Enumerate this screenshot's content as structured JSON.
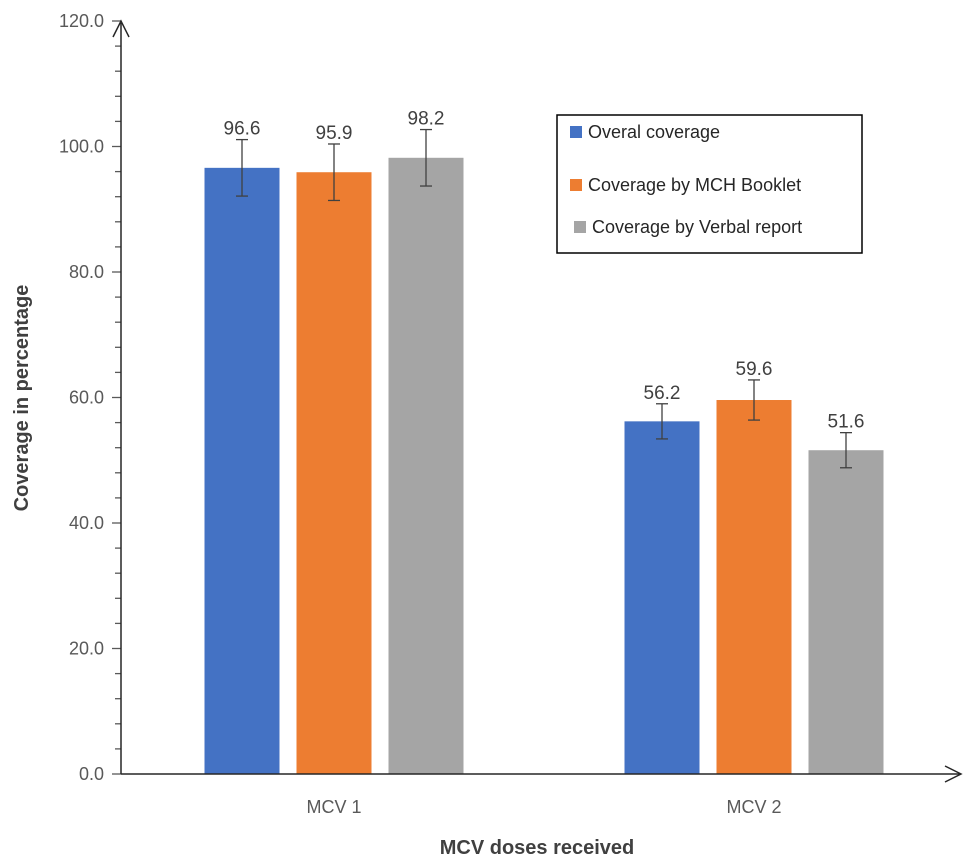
{
  "chart_data": {
    "type": "bar",
    "categories": [
      "MCV 1",
      "MCV 2"
    ],
    "series": [
      {
        "name": "Overal coverage",
        "values": [
          96.6,
          56.2
        ],
        "error": [
          4.5,
          2.8
        ],
        "color": "#4472C4"
      },
      {
        "name": "Coverage by MCH Booklet",
        "values": [
          95.9,
          59.6
        ],
        "error": [
          4.5,
          3.2
        ],
        "color": "#ED7D31"
      },
      {
        "name": "Coverage by Verbal report",
        "values": [
          98.2,
          51.6
        ],
        "error": [
          4.5,
          2.8
        ],
        "color": "#A5A5A5"
      }
    ],
    "data_labels": [
      [
        "96.6",
        "56.2"
      ],
      [
        "95.9",
        "59.6"
      ],
      [
        "98.2",
        "51.6"
      ]
    ],
    "title": "",
    "xlabel": "MCV doses received",
    "ylabel": "Coverage in percentage",
    "ylim": [
      0,
      120
    ],
    "yticks": [
      "0.0",
      "20.0",
      "40.0",
      "60.0",
      "80.0",
      "100.0",
      "120.0"
    ],
    "grid": false,
    "legend_position": "top-right",
    "legend_style": "boxed"
  }
}
